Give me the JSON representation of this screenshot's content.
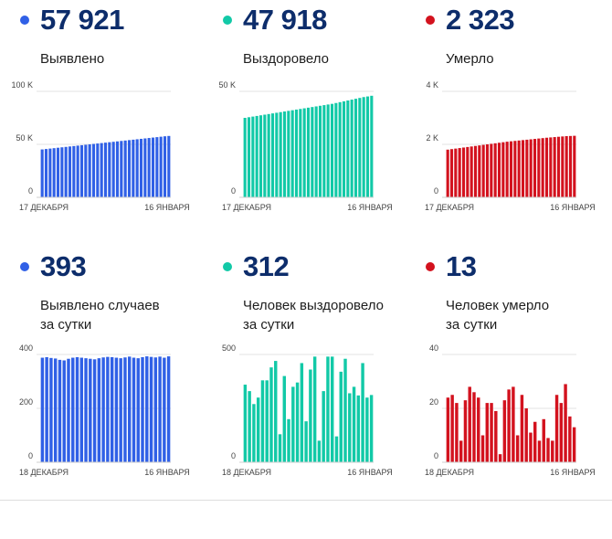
{
  "colors": {
    "blue": "#3060e6",
    "green": "#12c9a7",
    "red": "#d3121e",
    "grid": "#e3e3e3",
    "number": "#0d2d6b"
  },
  "chart_data": [
    {
      "type": "bar",
      "color": "blue",
      "value_label": "57 921",
      "label_lines": [
        "Выявлено"
      ],
      "ylim": [
        0,
        100000
      ],
      "yticks": [
        0,
        50000,
        100000
      ],
      "yticklabels": [
        "0",
        "50 K",
        "100 K"
      ],
      "xstart": "17 ДЕКАБРЯ",
      "xend": "16 ЯНВАРЯ",
      "values": [
        45200,
        45600,
        46000,
        46400,
        46800,
        47200,
        47600,
        48000,
        48400,
        48800,
        49200,
        49600,
        50000,
        50400,
        50800,
        51200,
        51600,
        52000,
        52400,
        52800,
        53200,
        53600,
        54000,
        54400,
        54800,
        55200,
        55600,
        56000,
        56400,
        56800,
        57200,
        57600,
        57921
      ]
    },
    {
      "type": "bar",
      "color": "green",
      "value_label": "47 918",
      "label_lines": [
        "Выздоровело"
      ],
      "ylim": [
        0,
        50000
      ],
      "yticks": [
        0,
        50000
      ],
      "yticklabels": [
        "0",
        "50 K"
      ],
      "xstart": "17 ДЕКАБРЯ",
      "xend": "16 ЯНВАРЯ",
      "values": [
        37500,
        37800,
        38100,
        38400,
        38700,
        39000,
        39300,
        39600,
        39900,
        40200,
        40500,
        40800,
        41100,
        41400,
        41700,
        42000,
        42300,
        42600,
        42900,
        43200,
        43500,
        43800,
        44100,
        44500,
        44900,
        45300,
        45700,
        46100,
        46500,
        46900,
        47300,
        47600,
        47918
      ]
    },
    {
      "type": "bar",
      "color": "red",
      "value_label": "2 323",
      "label_lines": [
        "Умерло"
      ],
      "ylim": [
        0,
        4000
      ],
      "yticks": [
        0,
        2000,
        4000
      ],
      "yticklabels": [
        "0",
        "2 K",
        "4 K"
      ],
      "xstart": "17 ДЕКАБРЯ",
      "xend": "16 ЯНВАРЯ",
      "values": [
        1800,
        1820,
        1840,
        1860,
        1880,
        1900,
        1920,
        1940,
        1960,
        1980,
        2000,
        2020,
        2040,
        2060,
        2080,
        2100,
        2115,
        2130,
        2145,
        2160,
        2175,
        2190,
        2205,
        2220,
        2235,
        2250,
        2262,
        2274,
        2286,
        2298,
        2310,
        2316,
        2323
      ]
    },
    {
      "type": "bar",
      "color": "blue",
      "value_label": "393",
      "label_lines": [
        "Выявлено случаев",
        "за сутки"
      ],
      "ylim": [
        0,
        400
      ],
      "yticks": [
        0,
        200,
        400
      ],
      "yticklabels": [
        "0",
        "200",
        "400"
      ],
      "xstart": "18 ДЕКАБРЯ",
      "xend": "16 ЯНВАРЯ",
      "values": [
        388,
        390,
        387,
        385,
        380,
        378,
        384,
        388,
        390,
        388,
        386,
        384,
        382,
        386,
        389,
        391,
        390,
        388,
        386,
        389,
        392,
        388,
        386,
        390,
        393,
        391,
        389,
        392,
        388,
        393
      ]
    },
    {
      "type": "bar",
      "color": "green",
      "value_label": "312",
      "label_lines": [
        "Человек выздоровело",
        "за сутки"
      ],
      "ylim": [
        0,
        500
      ],
      "yticks": [
        0,
        500
      ],
      "yticklabels": [
        "0",
        "500"
      ],
      "xstart": "18 ДЕКАБРЯ",
      "xend": "16 ЯНВАРЯ",
      "values": [
        360,
        330,
        270,
        300,
        380,
        380,
        440,
        470,
        130,
        400,
        200,
        350,
        370,
        460,
        190,
        430,
        490,
        100,
        330,
        490,
        490,
        120,
        420,
        480,
        320,
        350,
        310,
        460,
        300,
        312
      ]
    },
    {
      "type": "bar",
      "color": "red",
      "value_label": "13",
      "label_lines": [
        "Человек умерло",
        "за сутки"
      ],
      "ylim": [
        0,
        40
      ],
      "yticks": [
        0,
        20,
        40
      ],
      "yticklabels": [
        "0",
        "20",
        "40"
      ],
      "xstart": "18 ДЕКАБРЯ",
      "xend": "16 ЯНВАРЯ",
      "values": [
        24,
        25,
        22,
        8,
        23,
        28,
        26,
        24,
        10,
        22,
        22,
        19,
        3,
        23,
        27,
        28,
        10,
        25,
        20,
        11,
        15,
        8,
        16,
        9,
        8,
        25,
        22,
        29,
        17,
        13
      ]
    }
  ]
}
